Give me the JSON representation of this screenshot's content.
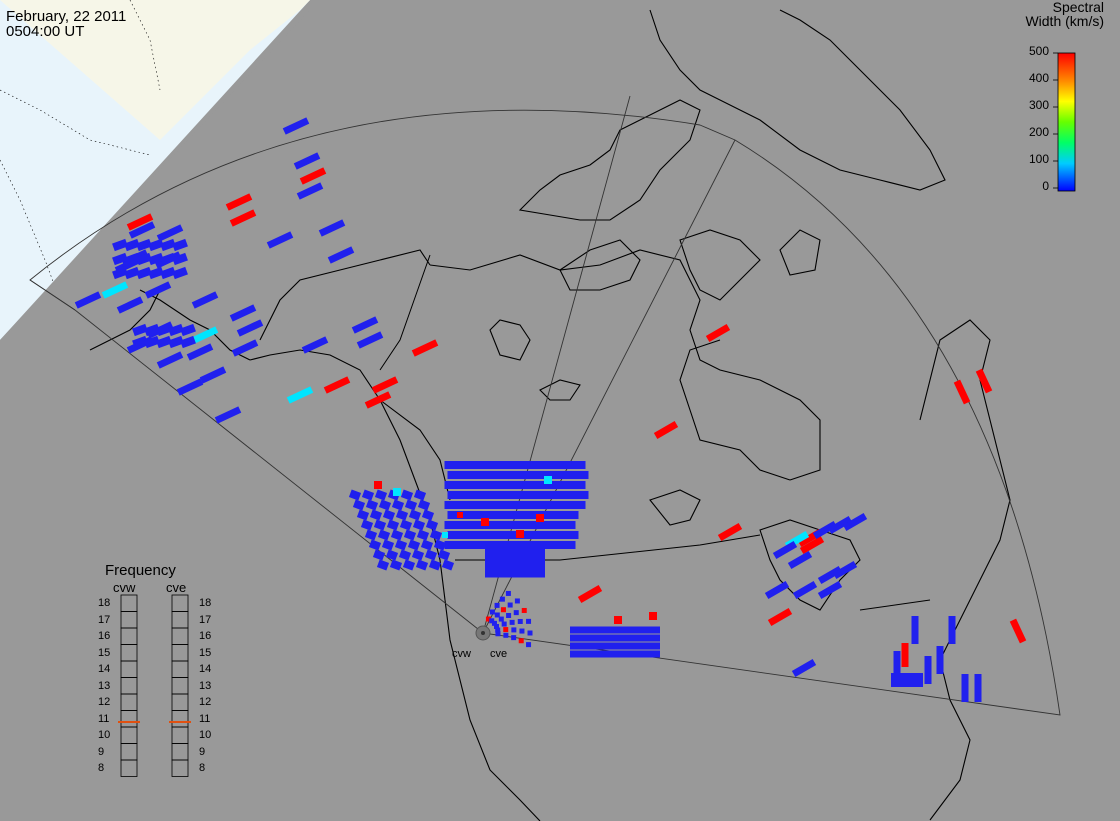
{
  "header": {
    "date": "February, 22 2011",
    "time": "0504:00 UT"
  },
  "legend": {
    "title_line1": "Spectral",
    "title_line2": "Width (km/s)",
    "ticks": [
      "500",
      "400",
      "300",
      "200",
      "100",
      "0"
    ],
    "range": [
      0,
      500
    ]
  },
  "frequency": {
    "title": "Frequency",
    "radars": [
      {
        "name": "cvw",
        "value": 10.8
      },
      {
        "name": "cve",
        "value": 10.8
      }
    ],
    "scale": [
      "18",
      "17",
      "16",
      "15",
      "14",
      "13",
      "12",
      "11",
      "10",
      "9",
      "8"
    ],
    "indicator_color": "#e05010"
  },
  "stations": [
    {
      "name": "cvw"
    },
    {
      "name": "cve"
    }
  ],
  "colors": {
    "background": "#999999",
    "ocean_light": "#e8f4fb",
    "land_light": "#f6f6e8",
    "high": "#ff0000",
    "low": "#2020ee",
    "mid": "#00e5ff"
  }
}
